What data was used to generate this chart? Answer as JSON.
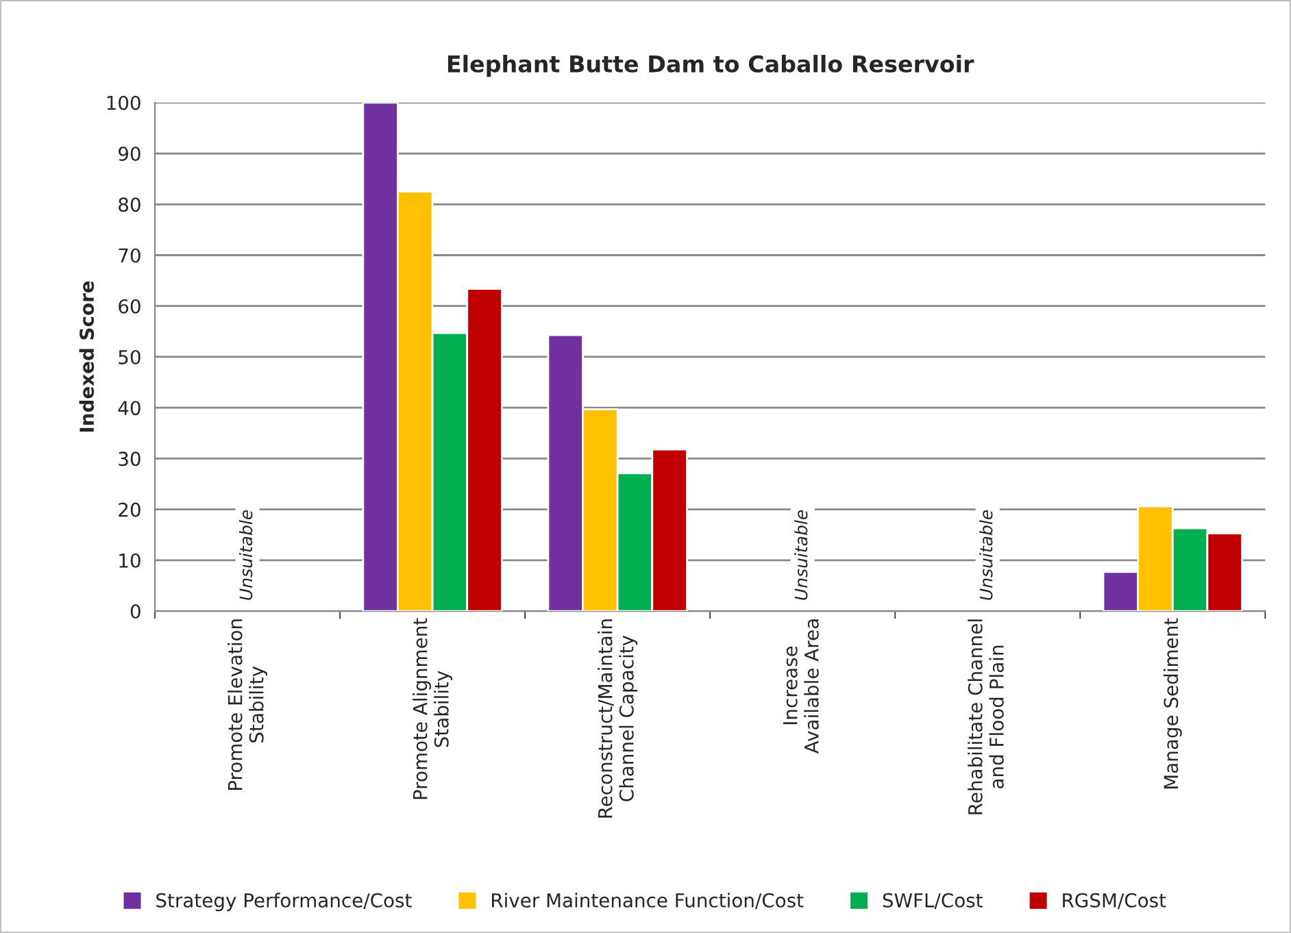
{
  "chart_data": {
    "type": "bar",
    "title": "Elephant Butte Dam to Caballo Reservoir",
    "ylabel": "Indexed Score",
    "categories": [
      "Promote Elevation\nStability",
      "Promote Alignment\nStability",
      "Reconstruct/Maintain\nChannel Capacity",
      "Increase\nAvailable Area",
      "Rehabilitate Channel\nand Flood Plain",
      "Manage Sediment"
    ],
    "series": [
      {
        "name": "Strategy Performance/Cost",
        "color": "#7030a0",
        "values": [
          null,
          100,
          54.3,
          null,
          null,
          7.7
        ]
      },
      {
        "name": "River Maintenance Function/Cost",
        "color": "#ffc000",
        "values": [
          null,
          82.5,
          39.7,
          null,
          null,
          20.6
        ]
      },
      {
        "name": "SWFL/Cost",
        "color": "#00b050",
        "values": [
          null,
          54.7,
          27.1,
          null,
          null,
          16.3
        ]
      },
      {
        "name": "RGSM/Cost",
        "color": "#c00000",
        "values": [
          null,
          63.4,
          31.8,
          null,
          null,
          15.3
        ]
      }
    ],
    "annotations": [
      "Unsuitable",
      "Unsuitable",
      "Unsuitable"
    ],
    "ylim": [
      0,
      100
    ],
    "yticks": [
      0,
      10,
      20,
      30,
      40,
      50,
      60,
      70,
      80,
      90,
      100
    ],
    "grid": "y",
    "legend": "bottom"
  }
}
